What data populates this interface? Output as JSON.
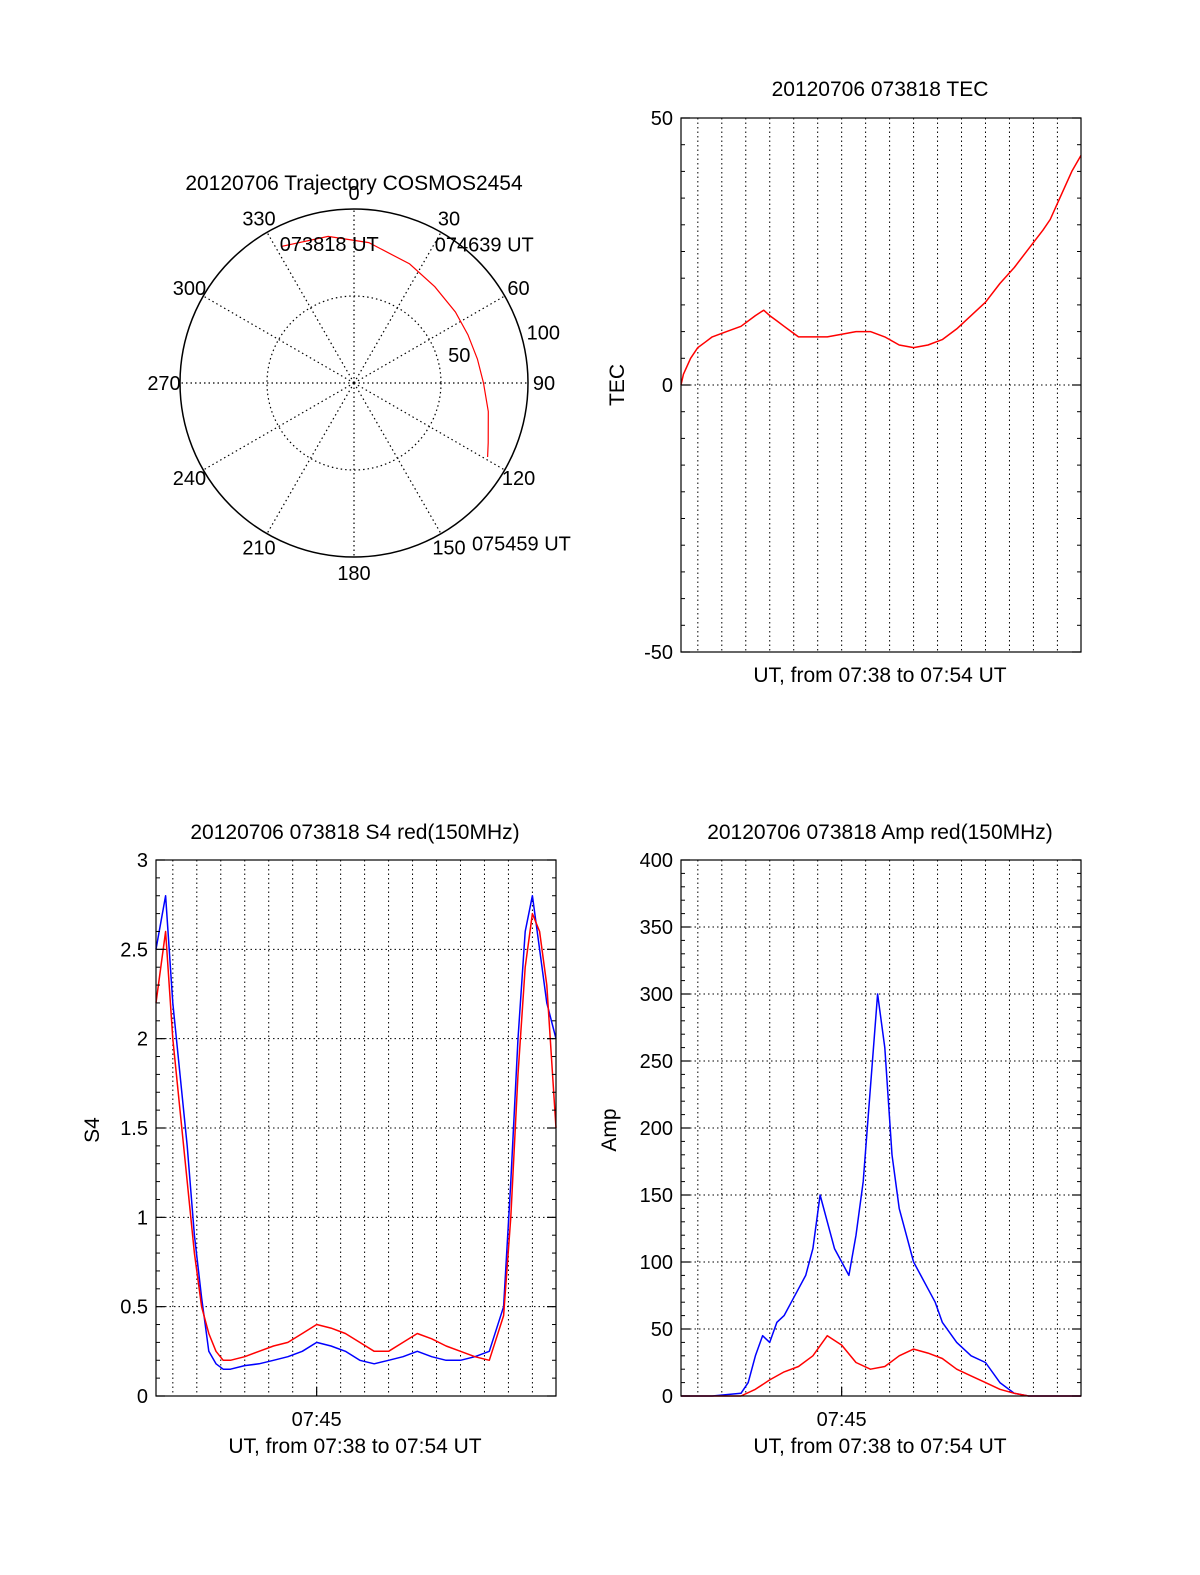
{
  "chart_data": [
    {
      "type": "polar",
      "title": "20120706 Trajectory COSMOS2454",
      "azimuth_labels": [
        "0",
        "30",
        "60",
        "90",
        "120",
        "150",
        "180",
        "210",
        "240",
        "270",
        "300",
        "330"
      ],
      "radial_labels": [
        "50",
        "100"
      ],
      "series": [
        {
          "color": "#ff0000",
          "points": [
            [
              -28,
              80
            ],
            [
              -10,
              77
            ],
            [
              6,
              73
            ],
            [
              25,
              68
            ],
            [
              40,
              65
            ],
            [
              55,
              64
            ],
            [
              67,
              64
            ],
            [
              79,
              65
            ],
            [
              90,
              67
            ],
            [
              102,
              71
            ],
            [
              114,
              76
            ],
            [
              119,
              79
            ]
          ]
        }
      ],
      "annotations": [
        {
          "text": "073818 UT",
          "az": -27,
          "zen": 80
        },
        {
          "text": "074639 UT",
          "az": 50,
          "zen": 64
        },
        {
          "text": "075459 UT",
          "az": 120,
          "zen": 80
        }
      ]
    },
    {
      "type": "line",
      "title": "20120706 073818 TEC",
      "xlabel": "UT, from 07:38 to 07:54 UT",
      "ylabel": "TEC",
      "xlim": [
        7.6383,
        7.9164
      ],
      "ylim": [
        -50,
        50
      ],
      "yticks": [
        "50",
        "0",
        "-50"
      ],
      "ytick_values": [
        50,
        0,
        -50
      ],
      "grid": true,
      "series": [
        {
          "color": "#ff0000",
          "x": [
            7.6383,
            7.64,
            7.645,
            7.65,
            7.655,
            7.66,
            7.67,
            7.68,
            7.69,
            7.6958,
            7.7,
            7.705,
            7.71,
            7.715,
            7.72,
            7.73,
            7.74,
            7.75,
            7.76,
            7.77,
            7.78,
            7.79,
            7.8,
            7.81,
            7.82,
            7.83,
            7.84,
            7.85,
            7.86,
            7.87,
            7.88,
            7.89,
            7.895,
            7.9,
            7.905,
            7.91,
            7.9164
          ],
          "y": [
            0,
            2,
            5,
            7,
            8,
            9,
            10,
            11,
            13,
            14,
            13,
            12,
            11,
            10,
            9,
            9,
            9,
            9.5,
            10,
            10,
            9,
            7.5,
            7,
            7.5,
            8.5,
            10.5,
            13,
            15.5,
            19,
            22,
            25.5,
            29,
            31,
            34,
            37,
            40,
            43
          ]
        }
      ]
    },
    {
      "type": "line",
      "title": "20120706 073818 S4 red(150MHz)",
      "xlabel": "UT, from 07:38 to 07:54 UT",
      "ylabel": "S4",
      "xlim": [
        7.6383,
        7.9164
      ],
      "ylim": [
        0,
        3
      ],
      "xticks": [
        "07:45"
      ],
      "xtick_values": [
        7.75
      ],
      "yticks": [
        "0",
        "0.5",
        "1",
        "1.5",
        "2",
        "2.5",
        "3"
      ],
      "ytick_values": [
        0,
        0.5,
        1,
        1.5,
        2,
        2.5,
        3
      ],
      "grid": true,
      "series": [
        {
          "color": "#0000ff",
          "x": [
            7.6383,
            7.645,
            7.65,
            7.655,
            7.66,
            7.665,
            7.67,
            7.675,
            7.68,
            7.685,
            7.69,
            7.7,
            7.71,
            7.72,
            7.73,
            7.74,
            7.75,
            7.76,
            7.77,
            7.78,
            7.79,
            7.8,
            7.81,
            7.82,
            7.83,
            7.84,
            7.85,
            7.86,
            7.87,
            7.88,
            7.885,
            7.89,
            7.895,
            7.9,
            7.905,
            7.91,
            7.9164
          ],
          "y": [
            2.5,
            2.8,
            2.2,
            1.8,
            1.4,
            0.9,
            0.55,
            0.25,
            0.18,
            0.15,
            0.15,
            0.17,
            0.18,
            0.2,
            0.22,
            0.25,
            0.3,
            0.28,
            0.25,
            0.2,
            0.18,
            0.2,
            0.22,
            0.25,
            0.22,
            0.2,
            0.2,
            0.22,
            0.25,
            0.5,
            1.2,
            2.0,
            2.6,
            2.8,
            2.5,
            2.2,
            2.0
          ]
        },
        {
          "color": "#ff0000",
          "x": [
            7.6383,
            7.645,
            7.65,
            7.655,
            7.66,
            7.665,
            7.67,
            7.675,
            7.68,
            7.685,
            7.69,
            7.7,
            7.71,
            7.72,
            7.73,
            7.74,
            7.75,
            7.76,
            7.77,
            7.78,
            7.79,
            7.8,
            7.81,
            7.82,
            7.83,
            7.84,
            7.85,
            7.86,
            7.87,
            7.88,
            7.885,
            7.89,
            7.895,
            7.9,
            7.905,
            7.91,
            7.9164
          ],
          "y": [
            2.2,
            2.6,
            2.0,
            1.6,
            1.2,
            0.8,
            0.5,
            0.35,
            0.25,
            0.2,
            0.2,
            0.22,
            0.25,
            0.28,
            0.3,
            0.35,
            0.4,
            0.38,
            0.35,
            0.3,
            0.25,
            0.25,
            0.3,
            0.35,
            0.32,
            0.28,
            0.25,
            0.22,
            0.2,
            0.45,
            1.0,
            1.8,
            2.4,
            2.7,
            2.6,
            2.3,
            1.5
          ]
        }
      ]
    },
    {
      "type": "line",
      "title": "20120706 073818 Amp red(150MHz)",
      "xlabel": "UT, from 07:38 to 07:54 UT",
      "ylabel": "Amp",
      "xlim": [
        7.6383,
        7.9164
      ],
      "ylim": [
        0,
        400
      ],
      "xticks": [
        "07:45"
      ],
      "xtick_values": [
        7.75
      ],
      "yticks": [
        "0",
        "50",
        "100",
        "150",
        "200",
        "250",
        "300",
        "350",
        "400"
      ],
      "ytick_values": [
        0,
        50,
        100,
        150,
        200,
        250,
        300,
        350,
        400
      ],
      "grid": true,
      "series": [
        {
          "color": "#0000ff",
          "x": [
            7.6383,
            7.66,
            7.68,
            7.685,
            7.69,
            7.695,
            7.7,
            7.705,
            7.71,
            7.715,
            7.72,
            7.725,
            7.73,
            7.735,
            7.74,
            7.745,
            7.75,
            7.755,
            7.76,
            7.765,
            7.77,
            7.775,
            7.78,
            7.785,
            7.79,
            7.795,
            7.8,
            7.805,
            7.81,
            7.815,
            7.82,
            7.83,
            7.84,
            7.85,
            7.86,
            7.87,
            7.88,
            7.9164
          ],
          "y": [
            0,
            0,
            2,
            10,
            30,
            45,
            40,
            55,
            60,
            70,
            80,
            90,
            110,
            150,
            130,
            110,
            100,
            90,
            120,
            160,
            230,
            300,
            260,
            180,
            140,
            120,
            100,
            90,
            80,
            70,
            55,
            40,
            30,
            25,
            10,
            2,
            0,
            0
          ]
        },
        {
          "color": "#ff0000",
          "x": [
            7.6383,
            7.68,
            7.69,
            7.7,
            7.71,
            7.72,
            7.73,
            7.74,
            7.75,
            7.76,
            7.77,
            7.78,
            7.79,
            7.8,
            7.81,
            7.82,
            7.83,
            7.84,
            7.85,
            7.86,
            7.87,
            7.88,
            7.9164
          ],
          "y": [
            0,
            0,
            5,
            12,
            18,
            22,
            30,
            45,
            38,
            25,
            20,
            22,
            30,
            35,
            32,
            28,
            20,
            15,
            10,
            5,
            2,
            0,
            0
          ]
        }
      ]
    }
  ]
}
